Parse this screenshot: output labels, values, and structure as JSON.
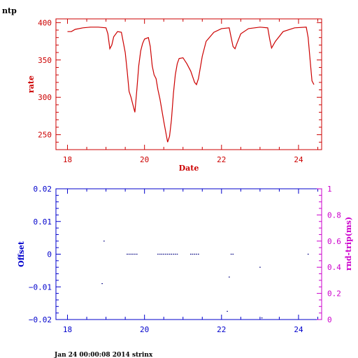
{
  "app_label": "ntp",
  "footer": "Jan 24 00:00:08 2014 strinx",
  "colors": {
    "top": "#cc0000",
    "bottom_axes": "#0000cc",
    "right_axis": "#cc00cc",
    "points": "#000080"
  },
  "chart_data": [
    {
      "type": "line",
      "title": "",
      "xlabel": "Date",
      "ylabel": "rate",
      "xlim": [
        17.7,
        24.6
      ],
      "ylim": [
        230,
        405
      ],
      "x_ticks": [
        18,
        20,
        22,
        24
      ],
      "y_ticks": [
        250,
        300,
        350,
        400
      ],
      "grid": false,
      "series": [
        {
          "x": [
            18.0,
            18.1,
            18.2,
            18.4,
            18.6,
            18.8,
            19.0,
            19.05,
            19.1,
            19.15,
            19.2,
            19.3,
            19.4,
            19.5,
            19.55,
            19.6,
            19.65,
            19.7,
            19.75,
            19.8,
            19.85,
            19.9,
            19.95,
            20.0,
            20.1,
            20.15,
            20.2,
            20.25,
            20.3,
            20.35,
            20.4,
            20.5,
            20.6,
            20.65,
            20.7,
            20.75,
            20.8,
            20.85,
            20.9,
            21.0,
            21.1,
            21.2,
            21.3,
            21.35,
            21.4,
            21.5,
            21.6,
            21.8,
            22.0,
            22.2,
            22.25,
            22.3,
            22.35,
            22.4,
            22.5,
            22.7,
            23.0,
            23.2,
            23.25,
            23.3,
            23.4,
            23.6,
            23.9,
            24.2,
            24.25,
            24.3,
            24.35,
            24.4
          ],
          "y": [
            388,
            388,
            391,
            393,
            394,
            394,
            393,
            385,
            365,
            370,
            381,
            388,
            387,
            360,
            335,
            308,
            300,
            290,
            280,
            310,
            342,
            362,
            372,
            378,
            380,
            368,
            342,
            330,
            325,
            310,
            298,
            268,
            240,
            248,
            270,
            305,
            330,
            345,
            352,
            353,
            345,
            335,
            320,
            317,
            325,
            355,
            375,
            387,
            392,
            393,
            380,
            368,
            365,
            372,
            385,
            392,
            394,
            393,
            378,
            366,
            375,
            388,
            393,
            394,
            380,
            350,
            322,
            317
          ]
        }
      ]
    },
    {
      "type": "scatter",
      "title": "",
      "xlabel": "",
      "ylabel": "Offset",
      "ylabel_right": "rnd-trip(ms)",
      "xlim": [
        17.7,
        24.6
      ],
      "ylim": [
        -0.02,
        0.02
      ],
      "ylim_right": [
        0,
        1
      ],
      "x_ticks": [
        18,
        20,
        22,
        24
      ],
      "y_ticks": [
        -0.02,
        -0.01,
        0,
        0.01,
        0.02
      ],
      "y_tick_labels": [
        "−0.02",
        "−0.01",
        "0",
        "0.01",
        "0.02"
      ],
      "y_right_ticks": [
        0,
        0.2,
        0.4,
        0.6,
        0.8,
        1
      ],
      "y_right_tick_labels": [
        "0",
        "0.2",
        "0.4",
        "0.6",
        "0.8",
        "1"
      ],
      "grid": false,
      "series": [
        {
          "x": [
            18.9,
            18.95,
            19.55,
            19.6,
            19.65,
            19.7,
            19.75,
            19.8,
            20.35,
            20.4,
            20.45,
            20.5,
            20.55,
            20.6,
            20.65,
            20.7,
            20.75,
            20.8,
            20.85,
            21.2,
            21.25,
            21.3,
            21.35,
            21.4,
            22.15,
            22.2,
            22.25,
            22.3,
            23.0,
            23.05,
            24.25
          ],
          "y": [
            -0.009,
            0.004,
            0,
            0,
            0,
            0,
            0,
            0,
            0,
            0,
            0,
            0,
            0,
            0,
            0,
            0,
            0,
            0,
            0,
            0,
            0,
            0,
            0,
            0,
            -0.0175,
            -0.007,
            0,
            0,
            -0.004,
            -0.0195,
            0
          ]
        }
      ]
    }
  ]
}
